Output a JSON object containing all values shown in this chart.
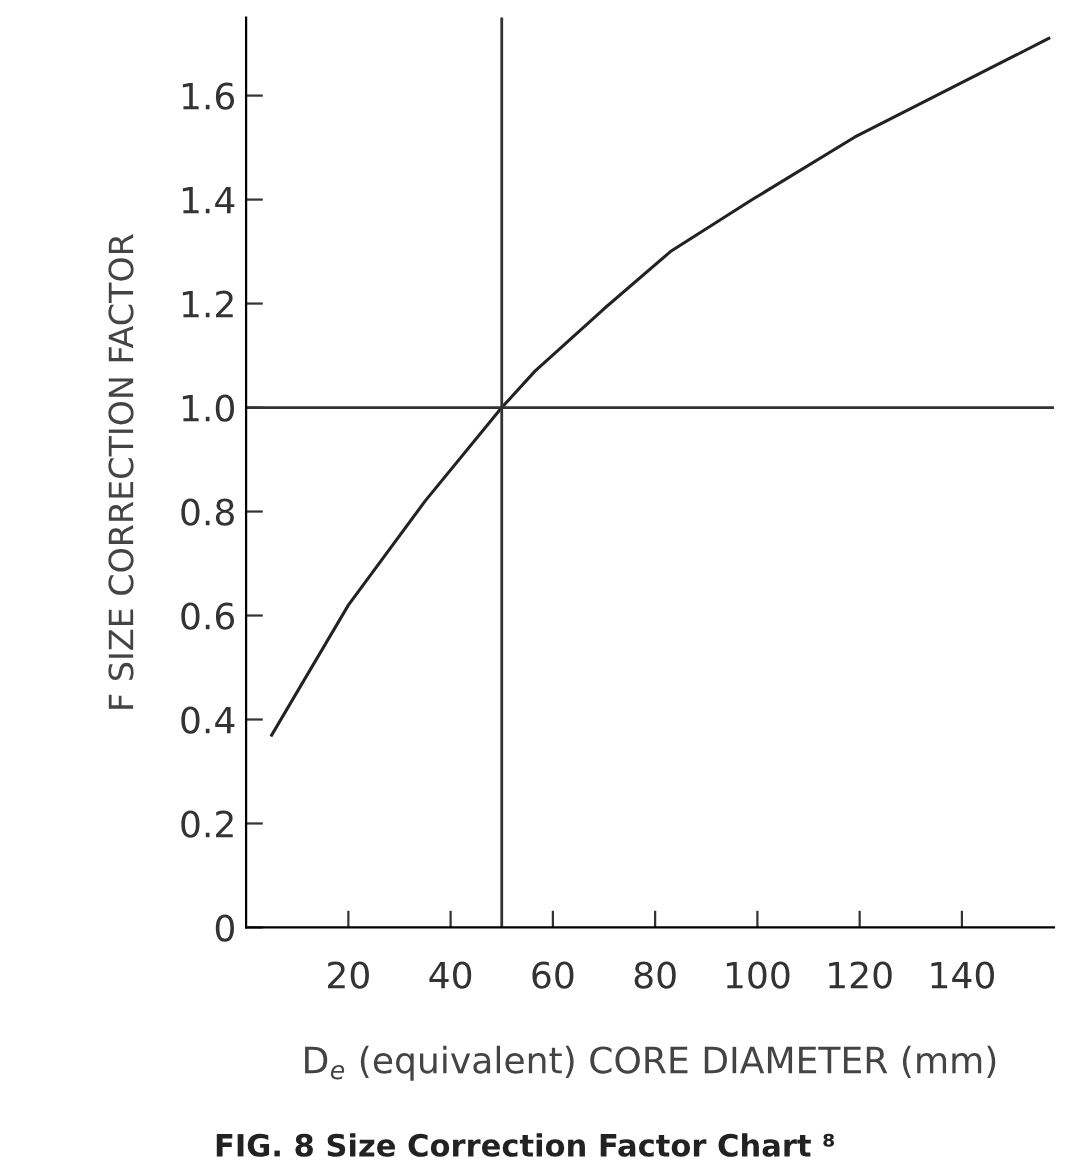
{
  "chart_data": {
    "type": "line",
    "xlabel": "D$_{e}$ (equivalent) CORE DIAMETER (mm)",
    "ylabel": "F SIZE CORRECTION FACTOR",
    "annotations": [
      "FIG. 8 Size Correction Factor Chart ⁸"
    ],
    "series": [
      {
        "color": "#222222",
        "x": [
          5,
          20,
          35,
          50,
          56.5,
          70,
          83,
          99,
          119,
          139,
          157
        ],
        "values": [
          0.37,
          0.62,
          0.82,
          1.0,
          1.07,
          1.19,
          1.3,
          1.4,
          1.52,
          1.62,
          1.71
        ]
      }
    ],
    "xlim": [
      0,
      158
    ],
    "xticks": [
      20,
      40,
      60,
      80,
      100,
      120,
      140
    ],
    "ylim": [
      0,
      1.75
    ],
    "yticks": [
      0,
      0.2,
      0.4,
      0.6,
      0.8,
      {
        "value": 1,
        "label": "1.0"
      },
      1.2,
      1.4,
      1.6
    ],
    "ref_lines": [
      {
        "axis": "x",
        "value": 50,
        "color": "#333333"
      },
      {
        "axis": "y",
        "value": 1.0,
        "color": "#333333"
      }
    ],
    "grid": false,
    "marker": "none",
    "line_style": "solid"
  }
}
